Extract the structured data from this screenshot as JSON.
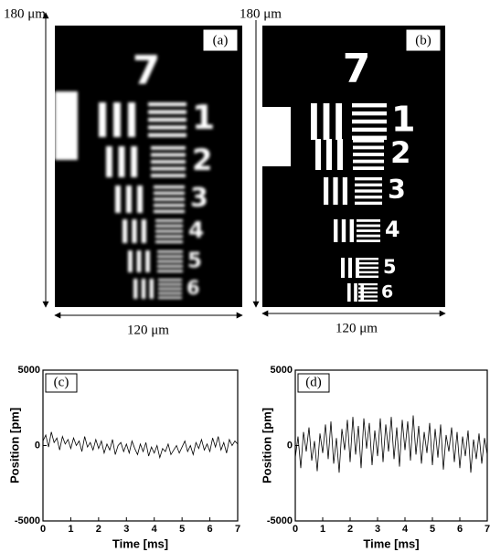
{
  "image_a": {
    "label": "(a)",
    "height_label": "180 μm",
    "width_label": "120 μm",
    "group_numbers": [
      "7",
      "1",
      "2",
      "3",
      "4",
      "5",
      "6"
    ]
  },
  "image_b": {
    "label": "(b)",
    "height_label": "180 μm",
    "width_label": "120 μm",
    "group_numbers": [
      "7",
      "1",
      "2",
      "3",
      "4",
      "5",
      "6"
    ]
  },
  "chart_data": [
    {
      "type": "line",
      "panel_label": "(c)",
      "xlabel": "Time [ms]",
      "ylabel": "Position [pm]",
      "color": "#000000",
      "xlim": [
        0,
        7
      ],
      "xticks": [
        0,
        1,
        2,
        3,
        4,
        5,
        6,
        7
      ],
      "ylim": [
        -5000,
        5000
      ],
      "yticks": [
        -5000,
        0,
        5000
      ],
      "x": [
        0,
        0.1,
        0.2,
        0.3,
        0.4,
        0.5,
        0.6,
        0.7,
        0.8,
        0.9,
        1,
        1.1,
        1.2,
        1.3,
        1.4,
        1.5,
        1.6,
        1.7,
        1.8,
        1.9,
        2,
        2.1,
        2.2,
        2.3,
        2.4,
        2.5,
        2.6,
        2.7,
        2.8,
        2.9,
        3,
        3.1,
        3.2,
        3.3,
        3.4,
        3.5,
        3.6,
        3.7,
        3.8,
        3.9,
        4,
        4.1,
        4.2,
        4.3,
        4.4,
        4.5,
        4.6,
        4.7,
        4.8,
        4.9,
        5,
        5.1,
        5.2,
        5.3,
        5.4,
        5.5,
        5.6,
        5.7,
        5.8,
        5.9,
        6,
        6.1,
        6.2,
        6.3,
        6.4,
        6.5,
        6.6,
        6.7,
        6.8,
        6.9,
        7
      ],
      "values": [
        300,
        700,
        -100,
        900,
        200,
        500,
        -300,
        600,
        100,
        400,
        -200,
        500,
        0,
        300,
        -400,
        600,
        -100,
        200,
        -300,
        400,
        -200,
        300,
        -500,
        100,
        -300,
        400,
        -600,
        0,
        200,
        -400,
        100,
        -500,
        300,
        -200,
        -600,
        100,
        -400,
        200,
        -700,
        -100,
        -500,
        0,
        -800,
        -200,
        -400,
        100,
        -600,
        -300,
        0,
        -500,
        -100,
        300,
        -400,
        0,
        -600,
        200,
        -200,
        400,
        -300,
        100,
        -400,
        500,
        -100,
        600,
        -300,
        200,
        -500,
        400,
        0,
        300,
        100
      ]
    },
    {
      "type": "line",
      "panel_label": "(d)",
      "xlabel": "Time [ms]",
      "ylabel": "Position [pm]",
      "color": "#000000",
      "xlim": [
        0,
        7
      ],
      "xticks": [
        0,
        1,
        2,
        3,
        4,
        5,
        6,
        7
      ],
      "ylim": [
        -5000,
        5000
      ],
      "yticks": [
        -5000,
        0,
        5000
      ],
      "x": [
        0,
        0.1,
        0.2,
        0.3,
        0.4,
        0.5,
        0.6,
        0.7,
        0.8,
        0.9,
        1,
        1.1,
        1.2,
        1.3,
        1.4,
        1.5,
        1.6,
        1.7,
        1.8,
        1.9,
        2,
        2.1,
        2.2,
        2.3,
        2.4,
        2.5,
        2.6,
        2.7,
        2.8,
        2.9,
        3,
        3.1,
        3.2,
        3.3,
        3.4,
        3.5,
        3.6,
        3.7,
        3.8,
        3.9,
        4,
        4.1,
        4.2,
        4.3,
        4.4,
        4.5,
        4.6,
        4.7,
        4.8,
        4.9,
        5,
        5.1,
        5.2,
        5.3,
        5.4,
        5.5,
        5.6,
        5.7,
        5.8,
        5.9,
        6,
        6.1,
        6.2,
        6.3,
        6.4,
        6.5,
        6.6,
        6.7,
        6.8,
        6.9,
        7
      ],
      "values": [
        -800,
        600,
        -1500,
        900,
        -400,
        1200,
        -1000,
        300,
        -1700,
        800,
        -500,
        1400,
        -900,
        1600,
        -1200,
        500,
        -1800,
        1100,
        -300,
        1700,
        -1100,
        1900,
        -600,
        1300,
        -1500,
        1800,
        -200,
        1500,
        -1300,
        1000,
        -700,
        1800,
        -1100,
        1400,
        -400,
        1900,
        -900,
        1200,
        -1400,
        1700,
        -300,
        1600,
        -1000,
        2000,
        -600,
        1300,
        -1200,
        900,
        -500,
        1500,
        -1300,
        1100,
        -800,
        1400,
        -1600,
        700,
        -400,
        1200,
        -1100,
        900,
        -1500,
        600,
        -700,
        1000,
        -1800,
        400,
        -900,
        800,
        -1200,
        500,
        -600
      ]
    }
  ]
}
